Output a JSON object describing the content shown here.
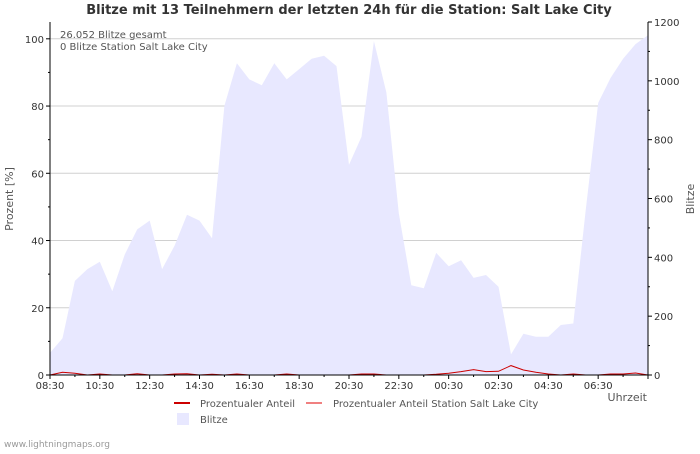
{
  "chart_data": {
    "type": "area",
    "title": "Blitze mit 13 Teilnehmern der letzten 24h für die Station: Salt Lake City",
    "ylabel_left": "Prozent   [%]",
    "ylabel_right": "Blitze",
    "xlabel": "Uhrzeit",
    "ylim_left": [
      0,
      105
    ],
    "ylim_right": [
      0,
      1200
    ],
    "yticks_left": [
      0,
      20,
      40,
      60,
      80,
      100
    ],
    "yticks_right": [
      0,
      200,
      400,
      600,
      800,
      1000,
      1200
    ],
    "x_ticks": [
      "08:30",
      "10:30",
      "12:30",
      "14:30",
      "16:30",
      "18:30",
      "20:30",
      "22:30",
      "00:30",
      "02:30",
      "04:30",
      "06:30"
    ],
    "grid": true,
    "annotations": [
      "26.052 Blitze gesamt",
      "0 Blitze Station Salt Lake City"
    ],
    "legend": [
      {
        "label": "Prozentualer Anteil",
        "color": "#cc0000",
        "kind": "line"
      },
      {
        "label": "Prozentualer Anteil Station Salt Lake City",
        "color": "#f08080",
        "kind": "line"
      },
      {
        "label": "Blitze",
        "color": "#e8e8ff",
        "kind": "area"
      }
    ],
    "series": [
      {
        "name": "Blitze",
        "axis": "right",
        "x": [
          0,
          0.5,
          1,
          1.5,
          2,
          2.5,
          3,
          3.5,
          4,
          4.5,
          5,
          5.5,
          6,
          6.5,
          7,
          7.5,
          8,
          8.5,
          9,
          9.5,
          10,
          10.5,
          11,
          11.5,
          12,
          12.5,
          13,
          13.5,
          14,
          14.5,
          15,
          15.5,
          16,
          16.5,
          17,
          17.5,
          18,
          18.5,
          19,
          19.5,
          20,
          20.5,
          21,
          21.5,
          22,
          22.5,
          23,
          23.5,
          24
        ],
        "values": [
          75,
          125,
          320,
          360,
          385,
          285,
          410,
          495,
          525,
          360,
          440,
          545,
          525,
          465,
          915,
          1060,
          1005,
          985,
          1060,
          1005,
          1040,
          1075,
          1085,
          1050,
          715,
          810,
          1135,
          960,
          550,
          305,
          295,
          415,
          370,
          390,
          330,
          340,
          300,
          70,
          140,
          130,
          130,
          170,
          175,
          560,
          925,
          1010,
          1075,
          1125,
          1155
        ]
      },
      {
        "name": "Prozentualer Anteil",
        "axis": "left",
        "x": [
          0,
          0.5,
          1,
          1.5,
          2,
          2.5,
          3,
          3.5,
          4,
          4.5,
          5,
          5.5,
          6,
          6.5,
          7,
          7.5,
          8,
          8.5,
          9,
          9.5,
          10,
          10.5,
          11,
          11.5,
          12,
          12.5,
          13,
          13.5,
          14,
          14.5,
          15,
          15.5,
          16,
          16.5,
          17,
          17.5,
          18,
          18.5,
          19,
          19.5,
          20,
          20.5,
          21,
          21.5,
          22,
          22.5,
          23,
          23.5,
          24
        ],
        "values": [
          0,
          0.8,
          0.5,
          0,
          0.3,
          0,
          0,
          0.4,
          0,
          0,
          0.3,
          0.4,
          0,
          0.2,
          0,
          0.3,
          0,
          0,
          0,
          0.3,
          0,
          0,
          0,
          0,
          0,
          0.3,
          0.3,
          0,
          0,
          0,
          0,
          0.2,
          0.5,
          1,
          1.6,
          1,
          1.1,
          2.8,
          1.5,
          0.8,
          0.3,
          0,
          0.3,
          0,
          0,
          0.3,
          0.3,
          0.6,
          0
        ]
      },
      {
        "name": "Prozentualer Anteil Station Salt Lake City",
        "axis": "left",
        "x": [
          0,
          24
        ],
        "values": [
          0,
          0
        ]
      }
    ]
  },
  "footer": {
    "source": "www.lightningmaps.org"
  }
}
